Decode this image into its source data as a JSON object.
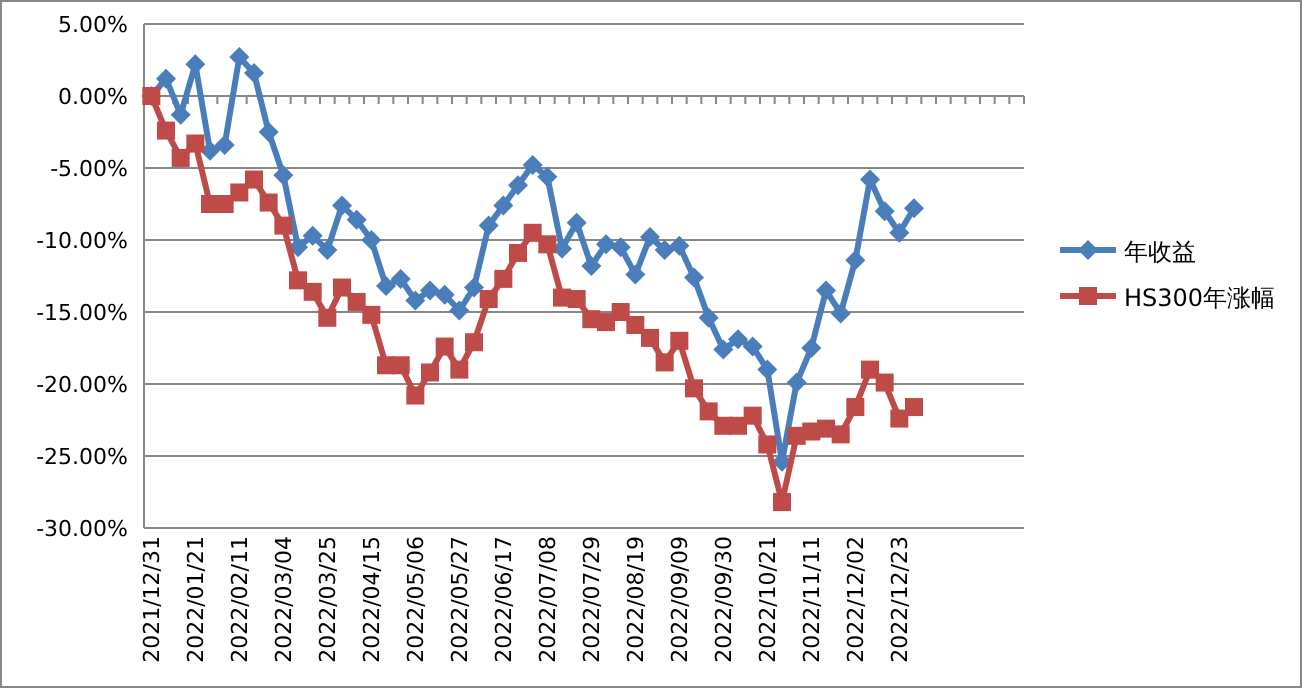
{
  "chart_data": {
    "type": "line",
    "categories": [
      "2021/12/31",
      null,
      null,
      "2022/01/21",
      null,
      null,
      "2022/02/11",
      null,
      null,
      "2022/03/04",
      null,
      null,
      "2022/03/25",
      null,
      null,
      "2022/04/15",
      null,
      null,
      "2022/05/06",
      null,
      null,
      "2022/05/27",
      null,
      null,
      "2022/06/17",
      null,
      null,
      "2022/07/08",
      null,
      null,
      "2022/07/29",
      null,
      null,
      "2022/08/19",
      null,
      null,
      "2022/09/09",
      null,
      null,
      "2022/09/30",
      null,
      null,
      "2022/10/21",
      null,
      null,
      "2022/11/11",
      null,
      null,
      "2022/12/02",
      null,
      null,
      "2022/12/23",
      null,
      null,
      null,
      null,
      null,
      null,
      null,
      null
    ],
    "series": [
      {
        "name": "年收益",
        "color": "#4a7ebb",
        "marker": "diamond",
        "values": [
          0,
          1.2,
          -1.3,
          2.2,
          -3.8,
          -3.4,
          2.7,
          1.6,
          -2.5,
          -5.5,
          -10.5,
          -9.7,
          -10.7,
          -7.6,
          -8.6,
          -10.0,
          -13.2,
          -12.7,
          -14.2,
          -13.5,
          -13.8,
          -14.9,
          -13.3,
          -9.0,
          -7.6,
          -6.2,
          -4.8,
          -5.6,
          -10.6,
          -8.8,
          -11.8,
          -10.3,
          -10.5,
          -12.4,
          -9.8,
          -10.7,
          -10.4,
          -12.6,
          -15.4,
          -17.6,
          -16.9,
          -17.4,
          -19.0,
          -25.4,
          -19.9,
          -17.5,
          -13.5,
          -15.1,
          -11.4,
          -5.8,
          -8.0,
          -9.5,
          -7.8,
          null,
          null,
          null,
          null,
          null,
          null,
          null
        ]
      },
      {
        "name": "HS300年涨幅",
        "color": "#be4b48",
        "marker": "square",
        "values": [
          0,
          -2.4,
          -4.3,
          -3.3,
          -7.5,
          -7.5,
          -6.7,
          -5.8,
          -7.4,
          -9.0,
          -12.8,
          -13.6,
          -15.4,
          -13.3,
          -14.3,
          -15.2,
          -18.7,
          -18.7,
          -20.8,
          -19.2,
          -17.4,
          -19.0,
          -17.1,
          -14.1,
          -12.7,
          -10.9,
          -9.5,
          -10.3,
          -14.0,
          -14.1,
          -15.5,
          -15.7,
          -15.0,
          -15.9,
          -16.8,
          -18.5,
          -17.0,
          -20.3,
          -21.9,
          -22.9,
          -22.9,
          -22.2,
          -24.2,
          -28.2,
          -23.6,
          -23.3,
          -23.1,
          -23.5,
          -21.6,
          -19.0,
          -19.9,
          -22.4,
          -21.6,
          null,
          null,
          null,
          null,
          null,
          null,
          null
        ]
      }
    ],
    "ylim": [
      -30,
      5
    ],
    "yticks": [
      {
        "value": 5,
        "label": "5.00%"
      },
      {
        "value": 0,
        "label": "0.00%"
      },
      {
        "value": -5,
        "label": "-5.00%"
      },
      {
        "value": -10,
        "label": "-10.00%"
      },
      {
        "value": -15,
        "label": "-15.00%"
      },
      {
        "value": -20,
        "label": "-20.00%"
      },
      {
        "value": -25,
        "label": "-25.00%"
      },
      {
        "value": -30,
        "label": "-30.00%"
      }
    ],
    "grid": "y",
    "legend": "right",
    "line_style": "solid"
  }
}
